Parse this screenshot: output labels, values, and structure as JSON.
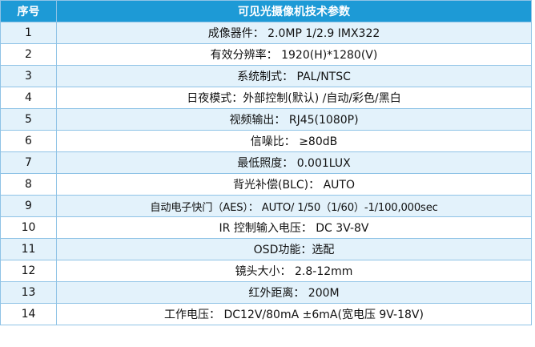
{
  "table": {
    "header": {
      "index_label": "序号",
      "title": "可见光摄像机技术参数"
    },
    "rows": [
      {
        "index": "1",
        "value": "成像器件： 2.0MP 1/2.9 IMX322"
      },
      {
        "index": "2",
        "value": "有效分辨率： 1920(H)*1280(V)"
      },
      {
        "index": "3",
        "value": "系统制式： PAL/NTSC"
      },
      {
        "index": "4",
        "value": "日夜模式：外部控制(默认) /自动/彩色/黑白"
      },
      {
        "index": "5",
        "value": "视频输出： RJ45(1080P)"
      },
      {
        "index": "6",
        "value": "信噪比： ≥80dB"
      },
      {
        "index": "7",
        "value": "最低照度： 0.001LUX"
      },
      {
        "index": "8",
        "value": "背光补偿(BLC)： AUTO"
      },
      {
        "index": "9",
        "value": "自动电子快门（AES）： AUTO/ 1/50（1/60）-1/100,000sec"
      },
      {
        "index": "10",
        "value": "IR 控制输入电压： DC 3V-8V"
      },
      {
        "index": "11",
        "value": "OSD功能：选配"
      },
      {
        "index": "12",
        "value": "镜头大小： 2.8-12mm"
      },
      {
        "index": "13",
        "value": "红外距离： 200M"
      },
      {
        "index": "14",
        "value": "工作电压： DC12V/80mA ±6mA(宽电压 9V-18V)"
      }
    ]
  },
  "colors": {
    "header_background": "#1d9ad6",
    "header_text": "#ffffff",
    "odd_row_background": "#e3f2fb",
    "even_row_background": "#ffffff",
    "border": "#8fc3e6"
  }
}
